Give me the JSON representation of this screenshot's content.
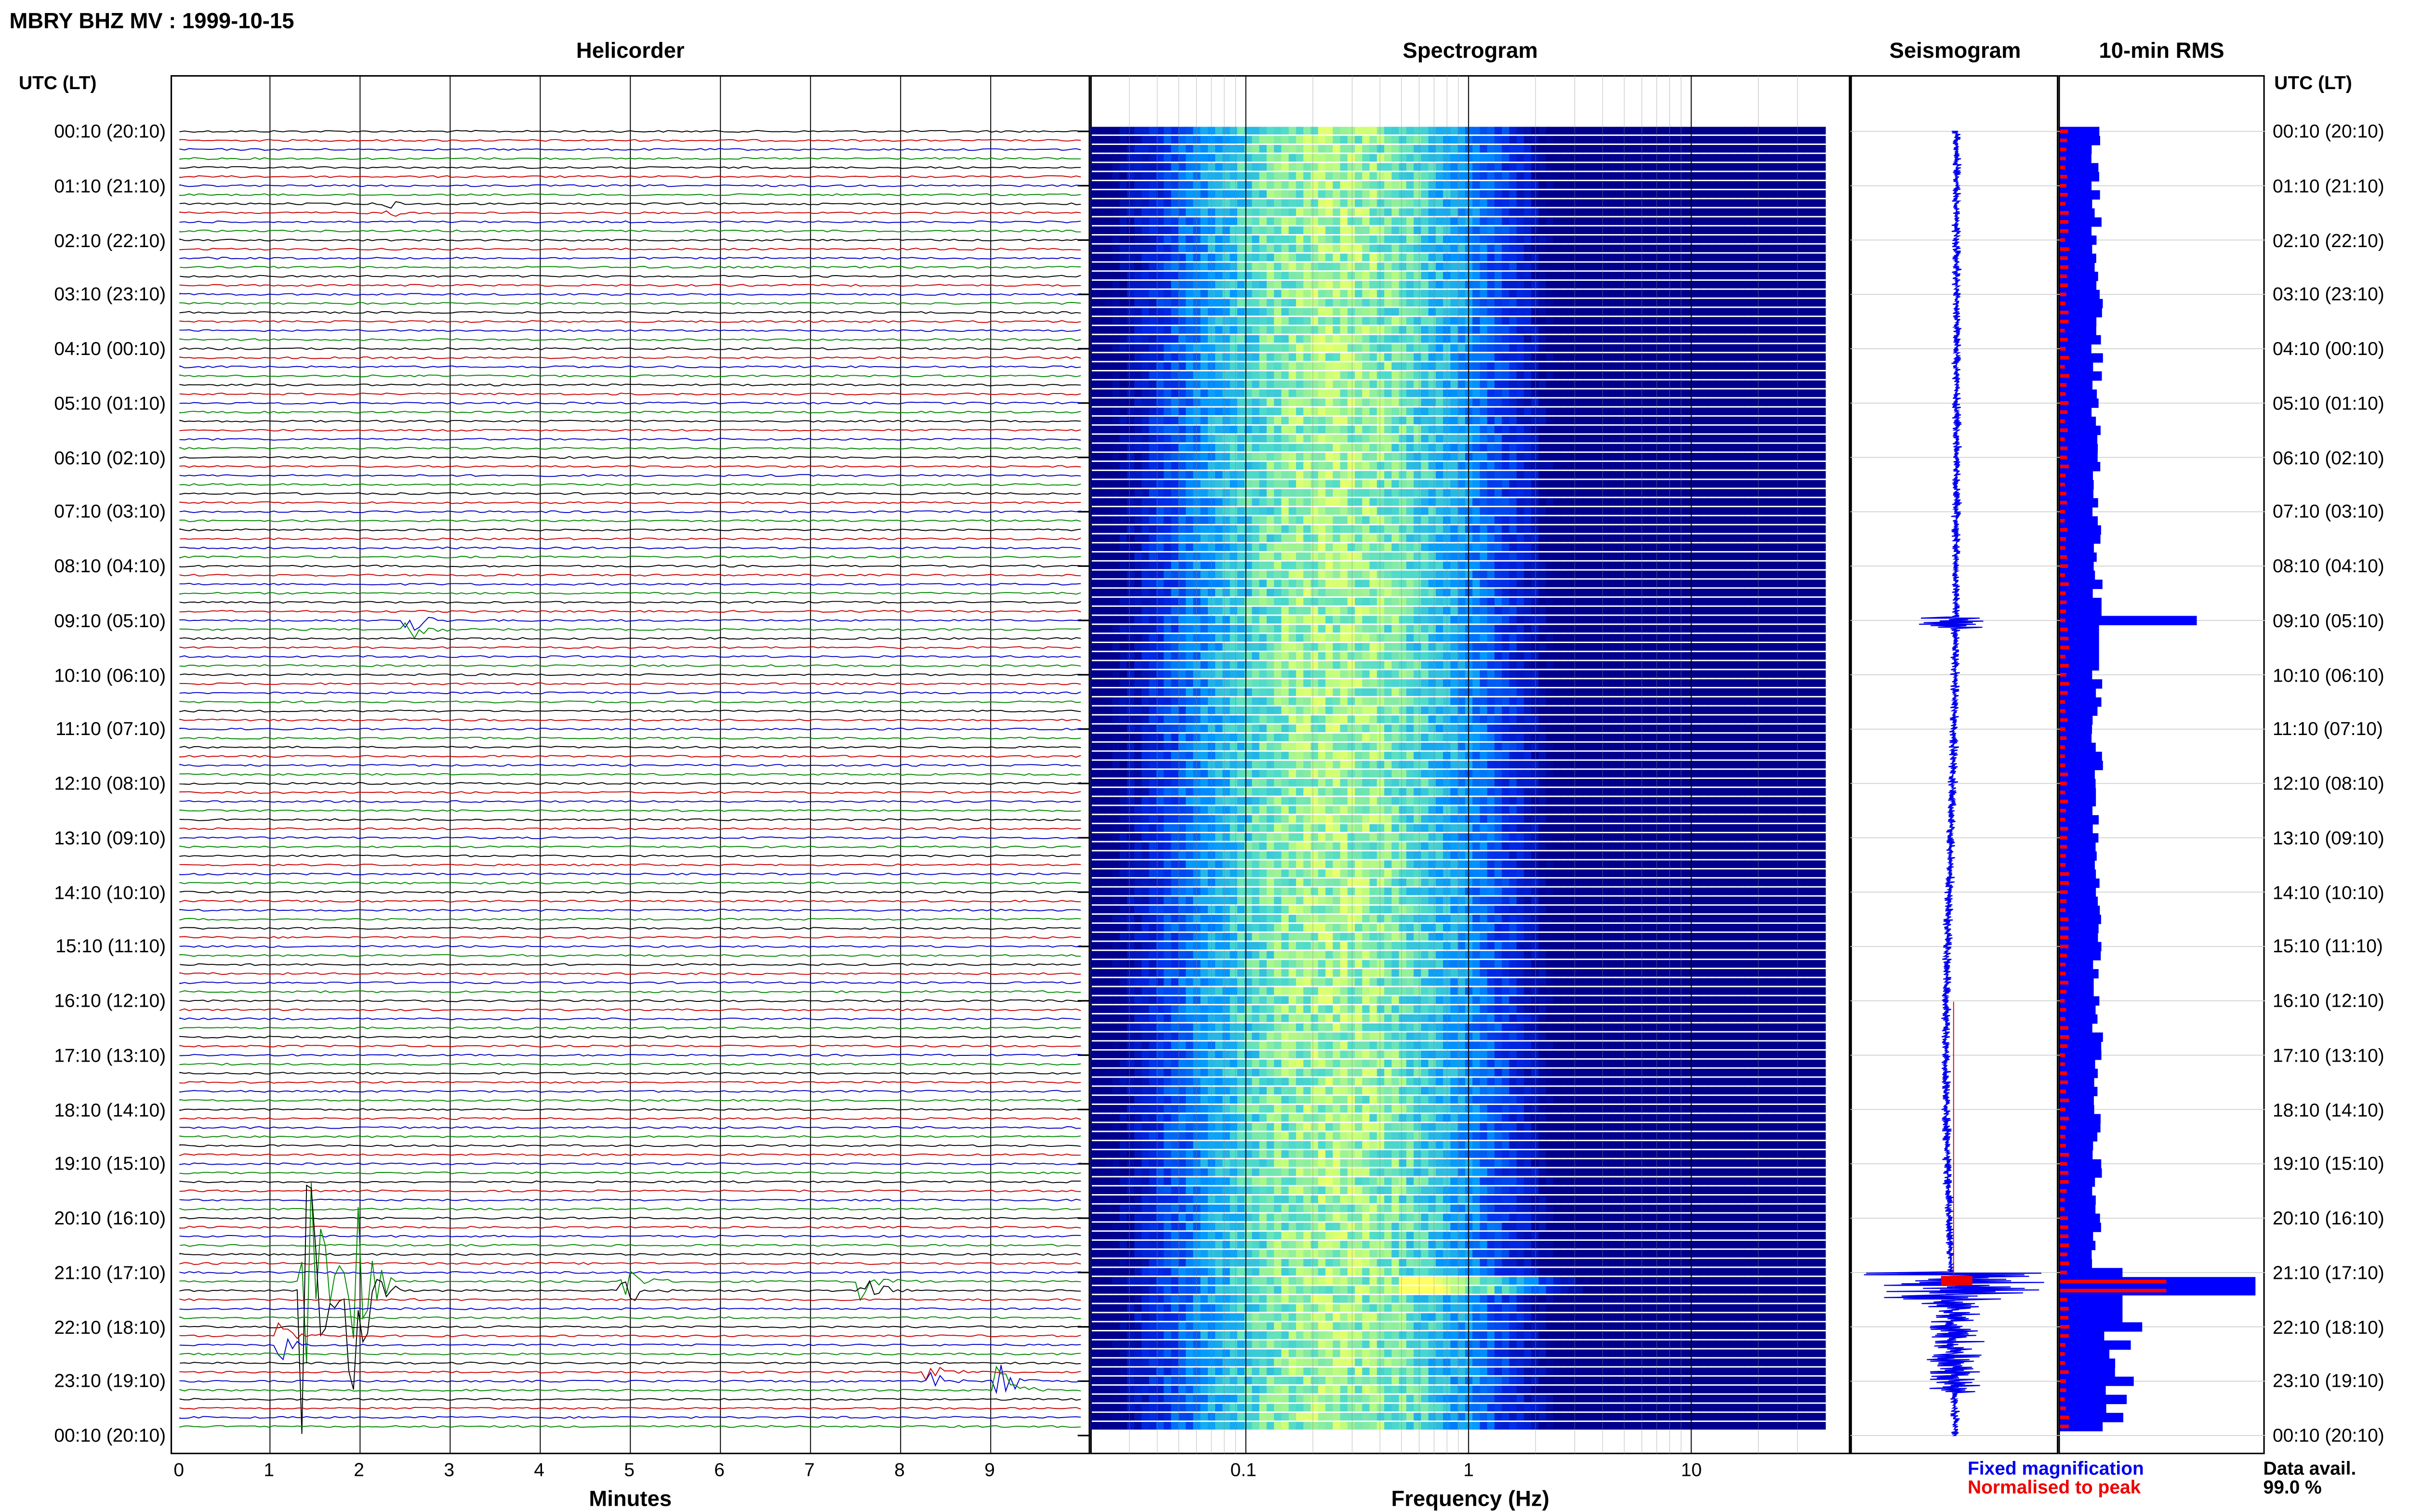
{
  "page_title": "MBRY BHZ MV : 1999-10-15",
  "panels": {
    "helicorder": "Helicorder",
    "spectrogram": "Spectrogram",
    "seismogram": "Seismogram",
    "rms": "10-min RMS"
  },
  "time_axis_header_left": "UTC (LT)",
  "time_axis_header_right": "UTC (LT)",
  "row_labels": [
    "00:10 (20:10)",
    "01:10 (21:10)",
    "02:10 (22:10)",
    "03:10 (23:10)",
    "04:10 (00:10)",
    "05:10 (01:10)",
    "06:10 (02:10)",
    "07:10 (03:10)",
    "08:10 (04:10)",
    "09:10 (05:10)",
    "10:10 (06:10)",
    "11:10 (07:10)",
    "12:10 (08:10)",
    "13:10 (09:10)",
    "14:10 (10:10)",
    "15:10 (11:10)",
    "16:10 (12:10)",
    "17:10 (13:10)",
    "18:10 (14:10)",
    "19:10 (15:10)",
    "20:10 (16:10)",
    "21:10 (17:10)",
    "22:10 (18:10)",
    "23:10 (19:10)",
    "00:10 (20:10)"
  ],
  "helicorder_xlabel": "Minutes",
  "helicorder_ticks": [
    "0",
    "1",
    "2",
    "3",
    "4",
    "5",
    "6",
    "7",
    "8",
    "9"
  ],
  "spectrogram_xlabel": "Frequency (Hz)",
  "spectrogram_ticks": [
    "0.1",
    "1",
    "10"
  ],
  "legend": {
    "fixed": "Fixed magnification",
    "normalised": "Normalised to peak",
    "fixed_color": "#0000ee",
    "normalised_color": "#ee0000"
  },
  "data_avail_label": "Data avail.",
  "data_avail_value": "99.0 %",
  "colors": {
    "trace_cycle": [
      "#000000",
      "#cc0000",
      "#0000cc",
      "#008800"
    ],
    "rms_bar": "#0000ff",
    "rms_norm": "#ff0000",
    "spectro_low": "#00008b",
    "spectro_high": "#ffff66"
  },
  "chart_data": [
    {
      "type": "line",
      "title": "Helicorder",
      "xlabel": "Minutes",
      "ylabel": "UTC (LT)",
      "xlim": [
        0,
        10
      ],
      "rows_per_hour": 6,
      "rows": 144,
      "events": [
        {
          "time": "01:30",
          "minute": 2.3,
          "amplitude": 0.3
        },
        {
          "time": "09:10",
          "minute": 2.5,
          "amplitude": 1.2
        },
        {
          "time": "21:20",
          "minute": 1.4,
          "amplitude": 8.0
        },
        {
          "time": "21:20",
          "minute": 1.9,
          "amplitude": 7.0
        },
        {
          "time": "21:20",
          "minute": 4.9,
          "amplitude": 1.5
        },
        {
          "time": "21:20",
          "minute": 7.6,
          "amplitude": 1.0
        },
        {
          "time": "22:20",
          "minute": 1.1,
          "amplitude": 1.0
        },
        {
          "time": "23:00",
          "minute": 8.3,
          "amplitude": 0.8
        },
        {
          "time": "23:10",
          "minute": 9.1,
          "amplitude": 1.5
        }
      ]
    },
    {
      "type": "heatmap",
      "title": "Spectrogram",
      "xlabel": "Frequency (Hz)",
      "xscale": "log",
      "xlim": [
        0.02,
        40
      ],
      "peak_frequency_hz": 0.25
    },
    {
      "type": "line",
      "title": "Seismogram",
      "series": [
        {
          "name": "Fixed magnification",
          "color": "#0000ee"
        },
        {
          "name": "Normalised to peak",
          "color": "#ee0000"
        }
      ]
    },
    {
      "type": "bar",
      "title": "10-min RMS",
      "categories": [
        "00:10",
        "01:10",
        "02:10",
        "03:10",
        "04:10",
        "05:10",
        "06:10",
        "07:10",
        "08:10",
        "09:10",
        "10:10",
        "11:10",
        "12:10",
        "13:10",
        "14:10",
        "15:10",
        "16:10",
        "17:10",
        "18:10",
        "19:10",
        "20:10",
        "21:10",
        "22:10",
        "23:10"
      ],
      "values": [
        1.0,
        1.0,
        1.0,
        1.0,
        1.0,
        1.0,
        1.0,
        1.0,
        1.0,
        3.5,
        1.0,
        1.0,
        1.0,
        1.0,
        1.0,
        1.0,
        1.0,
        1.0,
        1.0,
        1.0,
        1.0,
        5.0,
        2.0,
        2.0
      ],
      "series": [
        {
          "name": "Fixed magnification",
          "color": "#0000ff"
        },
        {
          "name": "Normalised to peak",
          "color": "#ff0000"
        }
      ]
    }
  ]
}
